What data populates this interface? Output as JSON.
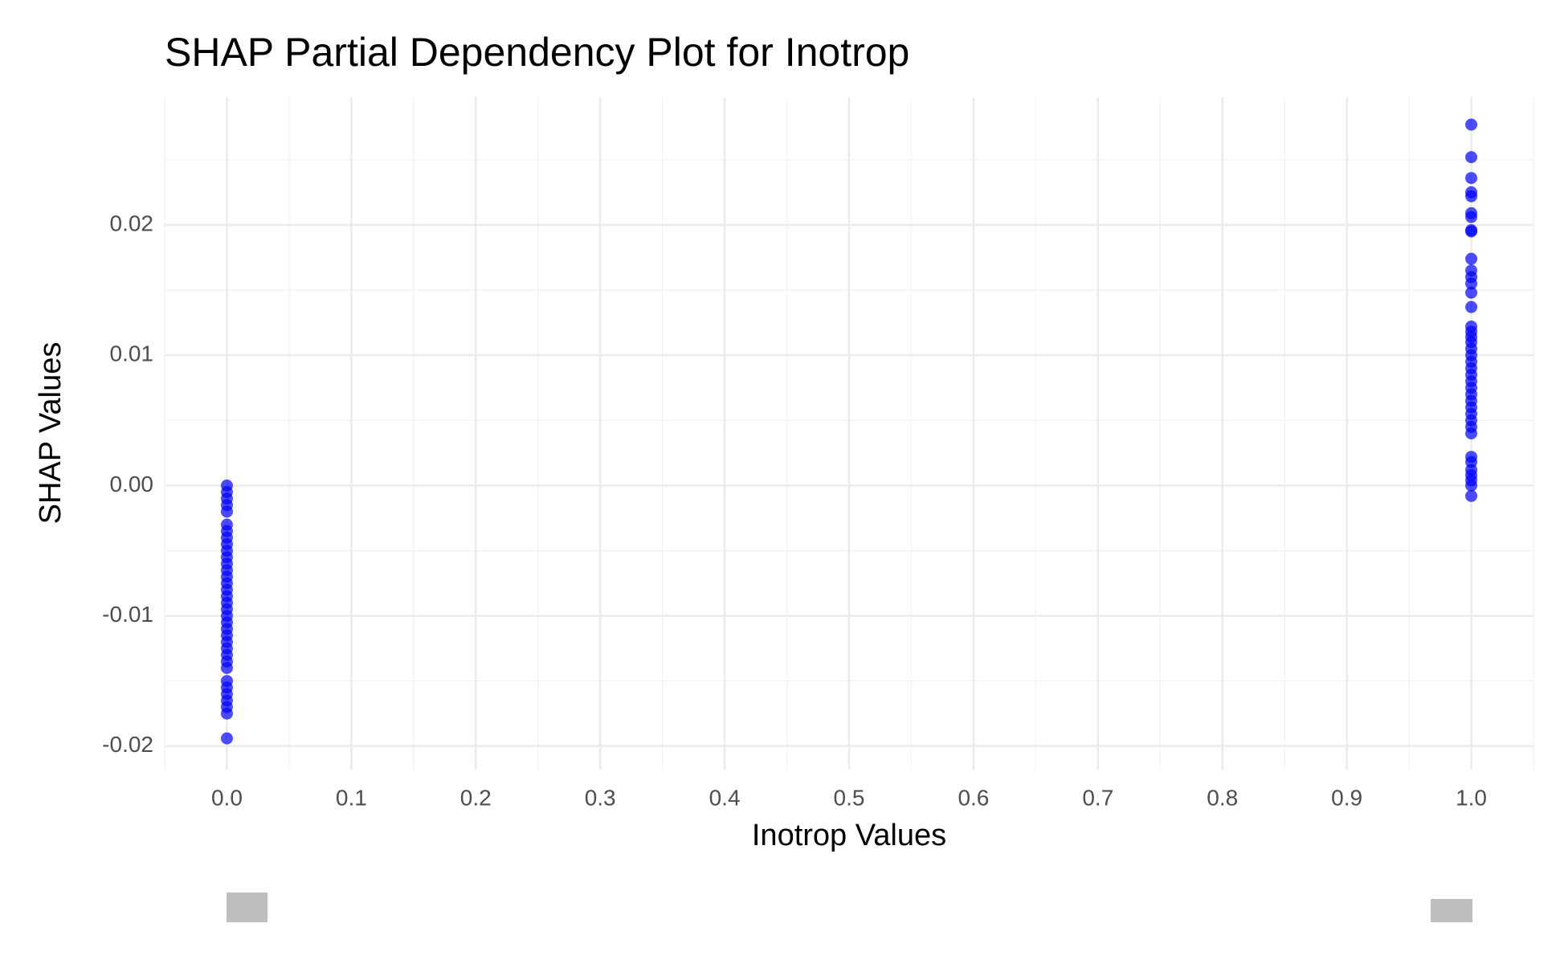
{
  "chart_data": {
    "type": "scatter",
    "title": "SHAP Partial Dependency Plot for Inotrop",
    "x_label": "Inotrop Values",
    "y_label": "SHAP Values",
    "color": "#0000ff",
    "opacity": 0.7,
    "grid": true,
    "xlim": [
      -0.05,
      1.05
    ],
    "ylim": [
      -0.0218,
      0.0298
    ],
    "xticks": [
      {
        "value": 0,
        "label": "0.0"
      },
      0.1,
      0.2,
      0.3,
      0.4,
      0.5,
      0.6,
      0.7,
      0.8,
      0.9,
      {
        "value": 1,
        "label": "1.0"
      }
    ],
    "yticks": [
      -0.02,
      -0.01,
      {
        "value": 0,
        "label": "0.00"
      },
      0.01,
      0.02
    ],
    "x": [
      0,
      0,
      0,
      0,
      0,
      0,
      0,
      0,
      0,
      0,
      0,
      0,
      0,
      0,
      0,
      0,
      0,
      0,
      0,
      0,
      0,
      0,
      0,
      0,
      0,
      0,
      0,
      0,
      0,
      0,
      0,
      0,
      0,
      0,
      0,
      1,
      1,
      1,
      1,
      1,
      1,
      1,
      1,
      1,
      1,
      1,
      1,
      1,
      1,
      1,
      1,
      1,
      1,
      1,
      1,
      1,
      1,
      1,
      1,
      1,
      1,
      1,
      1,
      1,
      1,
      1,
      1,
      1,
      1,
      1,
      1,
      1,
      1,
      1,
      1
    ],
    "y": [
      0,
      -0.0005,
      -0.001,
      -0.0015,
      -0.002,
      -0.003,
      -0.0035,
      -0.004,
      -0.0045,
      -0.005,
      -0.0055,
      -0.006,
      -0.0065,
      -0.007,
      -0.0075,
      -0.008,
      -0.0085,
      -0.009,
      -0.0095,
      -0.01,
      -0.0105,
      -0.011,
      -0.0115,
      -0.012,
      -0.0125,
      -0.013,
      -0.0135,
      -0.014,
      -0.015,
      -0.0155,
      -0.016,
      -0.0165,
      -0.017,
      -0.0175,
      -0.0194,
      0.0277,
      0.0252,
      0.0236,
      0.0225,
      0.0222,
      0.0209,
      0.0206,
      0.0196,
      0.0195,
      0.0174,
      0.0165,
      0.016,
      0.0155,
      0.0148,
      0.0137,
      0.0122,
      0.0118,
      0.0114,
      0.011,
      0.0105,
      0.01,
      0.0095,
      0.009,
      0.0085,
      0.008,
      0.0075,
      0.007,
      0.0065,
      0.006,
      0.0055,
      0.005,
      0.0045,
      0.004,
      0.0022,
      0.0018,
      0.0012,
      0.0008,
      0.0004,
      0,
      -0.0008
    ]
  }
}
